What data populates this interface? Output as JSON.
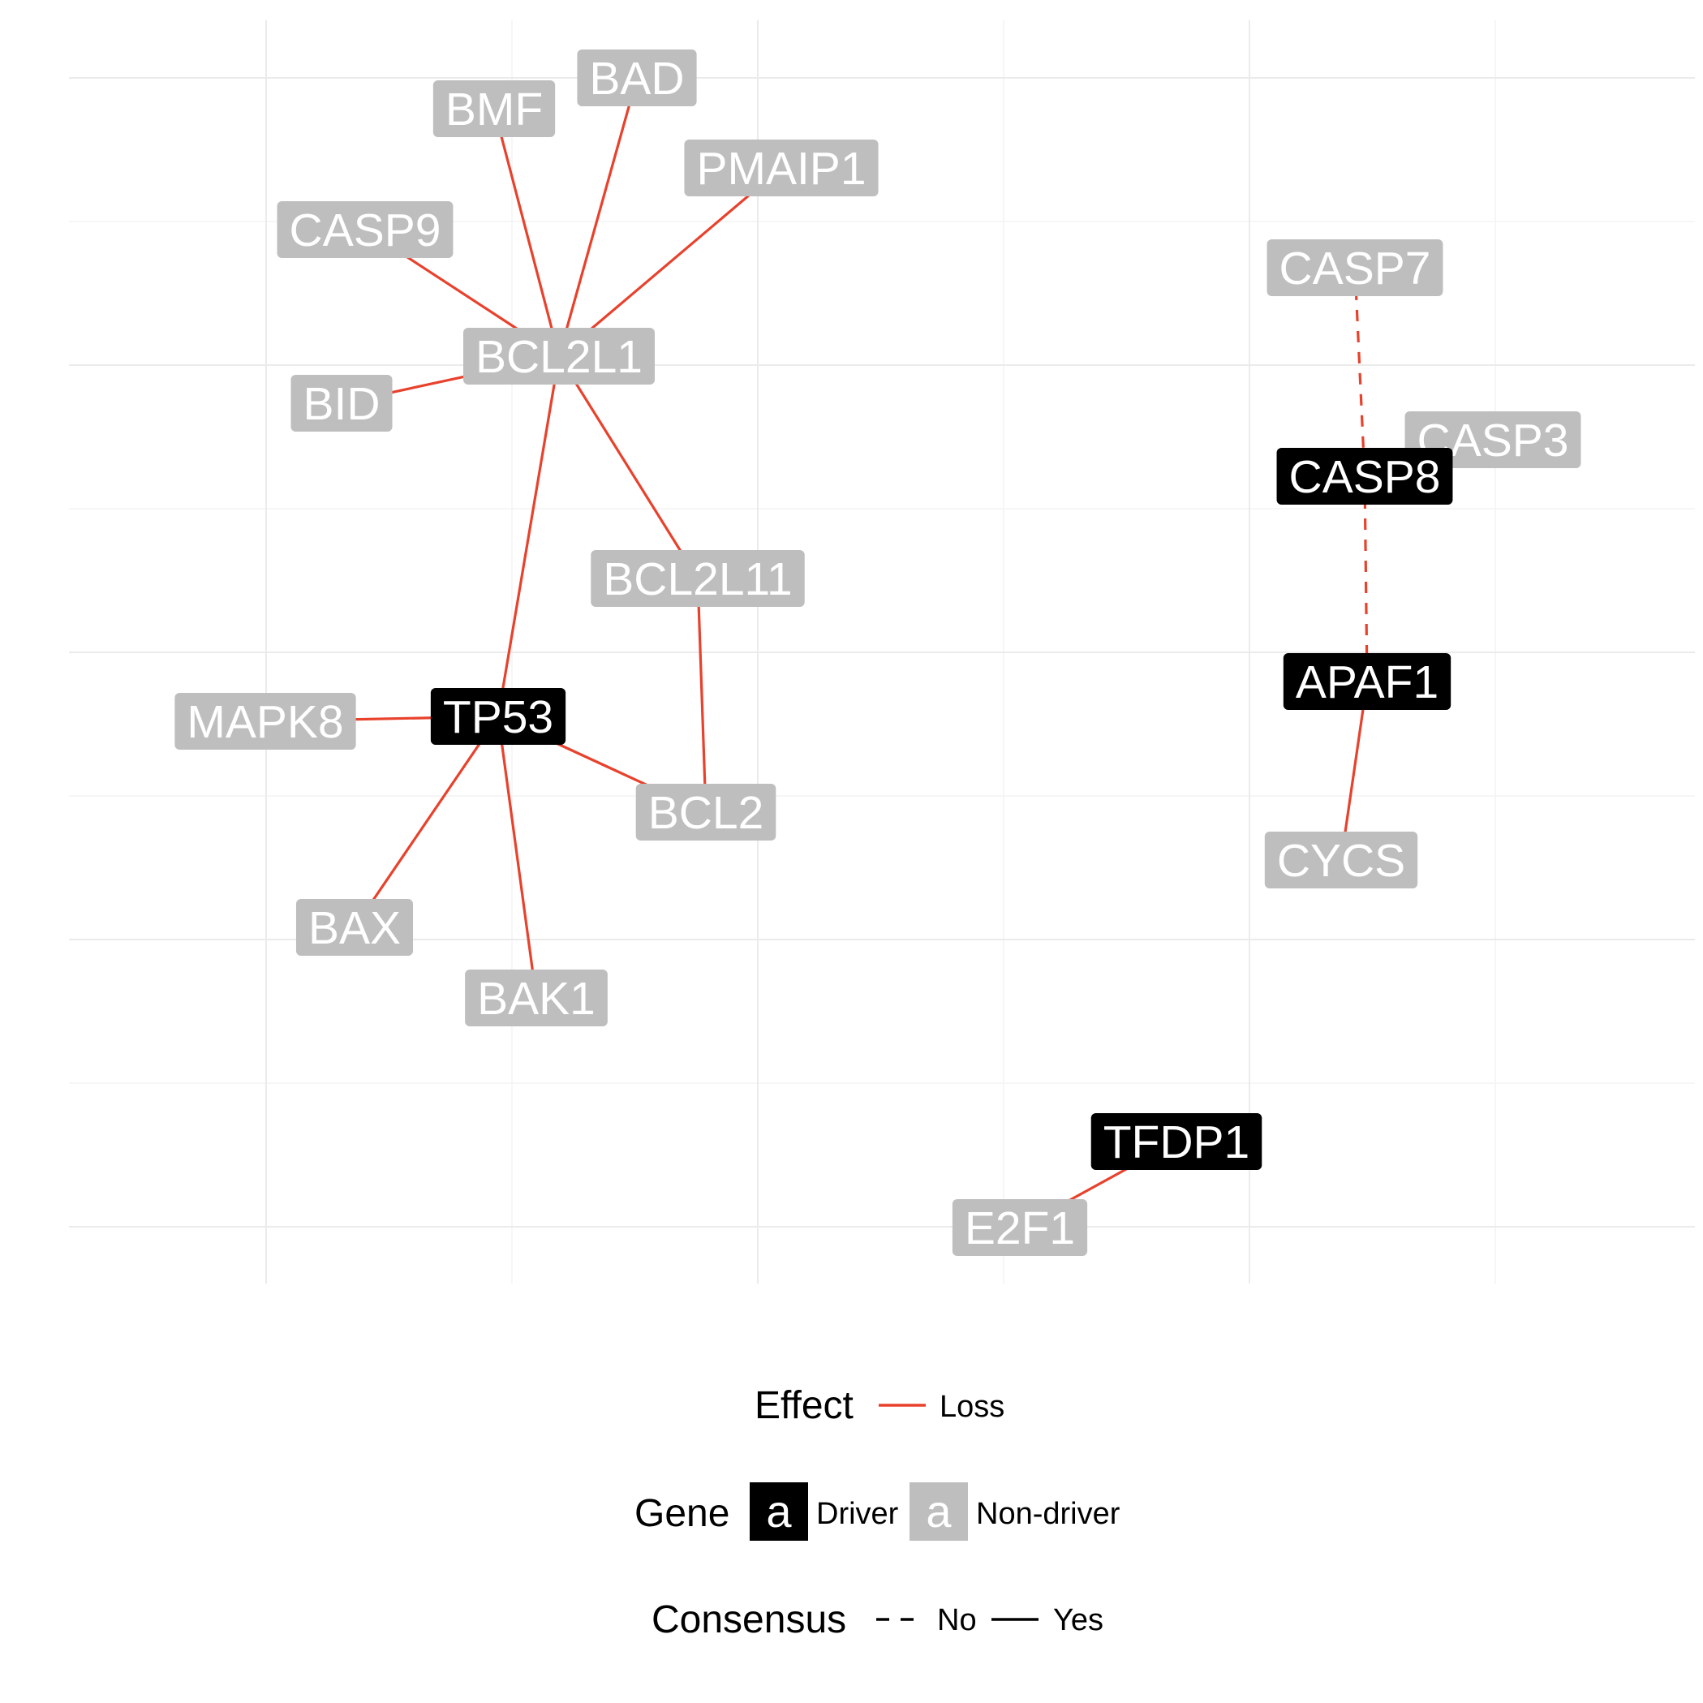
{
  "nodes": [
    {
      "id": "BAD",
      "label": "BAD",
      "driver": false
    },
    {
      "id": "BMF",
      "label": "BMF",
      "driver": false
    },
    {
      "id": "PMAIP1",
      "label": "PMAIP1",
      "driver": false
    },
    {
      "id": "CASP9",
      "label": "CASP9",
      "driver": false
    },
    {
      "id": "BCL2L1",
      "label": "BCL2L1",
      "driver": false
    },
    {
      "id": "BID",
      "label": "BID",
      "driver": false
    },
    {
      "id": "BCL2L11",
      "label": "BCL2L11",
      "driver": false
    },
    {
      "id": "TP53",
      "label": "TP53",
      "driver": true
    },
    {
      "id": "MAPK8",
      "label": "MAPK8",
      "driver": false
    },
    {
      "id": "BCL2",
      "label": "BCL2",
      "driver": false
    },
    {
      "id": "BAX",
      "label": "BAX",
      "driver": false
    },
    {
      "id": "BAK1",
      "label": "BAK1",
      "driver": false
    },
    {
      "id": "CASP7",
      "label": "CASP7",
      "driver": false
    },
    {
      "id": "CASP3",
      "label": "CASP3",
      "driver": false
    },
    {
      "id": "CASP8",
      "label": "CASP8",
      "driver": true
    },
    {
      "id": "APAF1",
      "label": "APAF1",
      "driver": true
    },
    {
      "id": "CYCS",
      "label": "CYCS",
      "driver": false
    },
    {
      "id": "TFDP1",
      "label": "TFDP1",
      "driver": true
    },
    {
      "id": "E2F1",
      "label": "E2F1",
      "driver": false
    }
  ],
  "edges": [
    {
      "source": "BCL2L1",
      "target": "BMF",
      "effect": "Loss",
      "consensus": "Yes"
    },
    {
      "source": "BCL2L1",
      "target": "BAD",
      "effect": "Loss",
      "consensus": "Yes"
    },
    {
      "source": "BCL2L1",
      "target": "PMAIP1",
      "effect": "Loss",
      "consensus": "Yes"
    },
    {
      "source": "BCL2L1",
      "target": "CASP9",
      "effect": "Loss",
      "consensus": "Yes"
    },
    {
      "source": "BCL2L1",
      "target": "BID",
      "effect": "Loss",
      "consensus": "Yes"
    },
    {
      "source": "BCL2L1",
      "target": "BCL2L11",
      "effect": "Loss",
      "consensus": "Yes"
    },
    {
      "source": "BCL2L1",
      "target": "TP53",
      "effect": "Loss",
      "consensus": "Yes"
    },
    {
      "source": "BCL2L11",
      "target": "BCL2",
      "effect": "Loss",
      "consensus": "Yes"
    },
    {
      "source": "TP53",
      "target": "MAPK8",
      "effect": "Loss",
      "consensus": "Yes"
    },
    {
      "source": "TP53",
      "target": "BCL2",
      "effect": "Loss",
      "consensus": "Yes"
    },
    {
      "source": "TP53",
      "target": "BAX",
      "effect": "Loss",
      "consensus": "Yes"
    },
    {
      "source": "TP53",
      "target": "BAK1",
      "effect": "Loss",
      "consensus": "Yes"
    },
    {
      "source": "CASP7",
      "target": "CASP8",
      "effect": "Loss",
      "consensus": "No"
    },
    {
      "source": "CASP8",
      "target": "APAF1",
      "effect": "Loss",
      "consensus": "No"
    },
    {
      "source": "APAF1",
      "target": "CYCS",
      "effect": "Loss",
      "consensus": "Yes"
    },
    {
      "source": "TFDP1",
      "target": "E2F1",
      "effect": "Loss",
      "consensus": "Yes"
    }
  ],
  "legend": {
    "effect": {
      "title": "Effect",
      "items": [
        {
          "label": "Loss",
          "color": "#e8412c"
        }
      ]
    },
    "gene": {
      "title": "Gene",
      "key_glyph": "a",
      "items": [
        {
          "label": "Driver",
          "color": "#000000"
        },
        {
          "label": "Non-driver",
          "color": "#bebebe"
        }
      ]
    },
    "consensus": {
      "title": "Consensus",
      "items": [
        {
          "label": "No",
          "style": "dashed"
        },
        {
          "label": "Yes",
          "style": "solid"
        }
      ]
    }
  },
  "colors": {
    "edge": "#e8412c",
    "driver": "#000000",
    "nondriver": "#bebebe",
    "grid": "#ebebeb"
  }
}
